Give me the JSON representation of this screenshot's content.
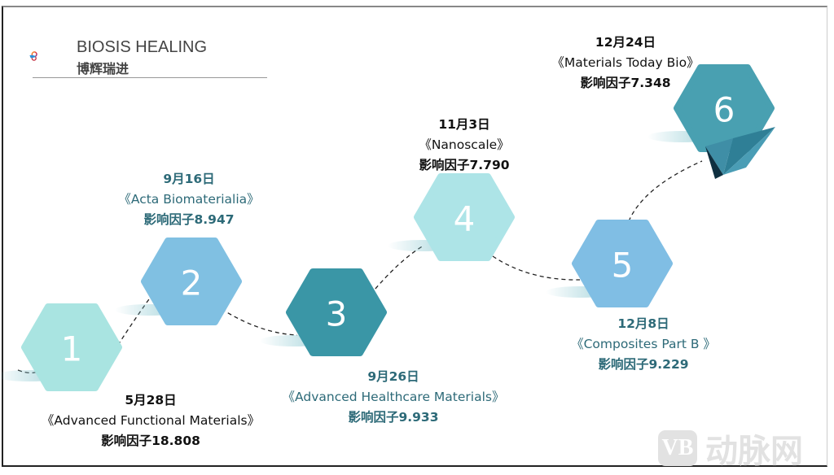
{
  "logo": {
    "name_en": "BIOSIS HEALING",
    "name_cn": "博辉瑞进"
  },
  "milestones": [
    {
      "number": "1",
      "date": "5月28日",
      "journal": "《Advanced Functional Materials》",
      "impact": "影响因子18.808",
      "color": "#a9e4e1"
    },
    {
      "number": "2",
      "date": "9月16日",
      "journal": "《Acta Biomaterialia》",
      "impact": "影响因子8.947",
      "color": "#80c0e2"
    },
    {
      "number": "3",
      "date": "9月26日",
      "journal": "《Advanced Healthcare Materials》",
      "impact": "影响因子9.933",
      "color": "#3a96a6"
    },
    {
      "number": "4",
      "date": "11月3日",
      "journal": "《Nanoscale》",
      "impact": "影响因子7.790",
      "color": "#ade4e7"
    },
    {
      "number": "5",
      "date": "12月8日",
      "journal": "《Composites Part B 》",
      "impact": "影响因子9.229",
      "color": "#80bee4"
    },
    {
      "number": "6",
      "date": "12月24日",
      "journal": "《Materials Today Bio》",
      "impact": "影响因子7.348",
      "color": "#49a0b1"
    }
  ],
  "watermark": {
    "badge": "VB",
    "text": "动脉网"
  }
}
